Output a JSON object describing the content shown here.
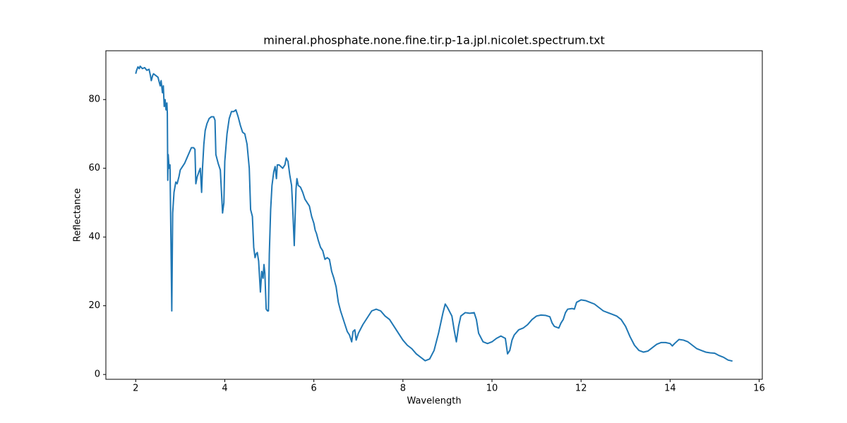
{
  "chart_data": {
    "type": "line",
    "title": "mineral.phosphate.none.fine.tir.p-1a.jpl.nicolet.spectrum.txt",
    "x_label": "Wavelength",
    "y_label": "Reflectance",
    "color": "#1f77b4",
    "xlim": [
      1.33,
      16.07
    ],
    "ylim": [
      -1.4,
      94.2
    ],
    "xticks": [
      2,
      4,
      6,
      8,
      10,
      12,
      14,
      16
    ],
    "yticks": [
      0,
      20,
      40,
      60,
      80
    ],
    "x": [
      2.0,
      2.02,
      2.05,
      2.08,
      2.1,
      2.15,
      2.2,
      2.25,
      2.3,
      2.33,
      2.35,
      2.38,
      2.4,
      2.45,
      2.5,
      2.53,
      2.55,
      2.57,
      2.6,
      2.62,
      2.64,
      2.66,
      2.68,
      2.7,
      2.71,
      2.72,
      2.73,
      2.75,
      2.77,
      2.79,
      2.81,
      2.83,
      2.86,
      2.9,
      2.93,
      2.97,
      3.0,
      3.05,
      3.1,
      3.15,
      3.2,
      3.25,
      3.3,
      3.33,
      3.35,
      3.38,
      3.42,
      3.45,
      3.48,
      3.5,
      3.53,
      3.56,
      3.6,
      3.65,
      3.7,
      3.75,
      3.78,
      3.8,
      3.85,
      3.9,
      3.95,
      3.98,
      4.0,
      4.05,
      4.1,
      4.15,
      4.2,
      4.25,
      4.3,
      4.35,
      4.4,
      4.45,
      4.5,
      4.55,
      4.58,
      4.62,
      4.65,
      4.68,
      4.7,
      4.73,
      4.76,
      4.8,
      4.83,
      4.86,
      4.88,
      4.9,
      4.93,
      4.96,
      4.98,
      5.0,
      5.03,
      5.06,
      5.1,
      5.13,
      5.16,
      5.18,
      5.22,
      5.26,
      5.3,
      5.35,
      5.38,
      5.42,
      5.46,
      5.5,
      5.53,
      5.56,
      5.58,
      5.6,
      5.62,
      5.65,
      5.7,
      5.75,
      5.8,
      5.85,
      5.9,
      5.95,
      6.0,
      6.03,
      6.06,
      6.1,
      6.15,
      6.2,
      6.25,
      6.3,
      6.35,
      6.4,
      6.45,
      6.5,
      6.55,
      6.6,
      6.65,
      6.7,
      6.75,
      6.8,
      6.85,
      6.88,
      6.92,
      6.95,
      7.0,
      7.1,
      7.2,
      7.3,
      7.4,
      7.5,
      7.6,
      7.7,
      7.8,
      7.9,
      8.0,
      8.1,
      8.2,
      8.3,
      8.4,
      8.5,
      8.6,
      8.7,
      8.8,
      8.9,
      8.95,
      9.0,
      9.1,
      9.15,
      9.2,
      9.25,
      9.3,
      9.4,
      9.5,
      9.6,
      9.65,
      9.7,
      9.8,
      9.9,
      10.0,
      10.1,
      10.2,
      10.3,
      10.35,
      10.4,
      10.45,
      10.5,
      10.6,
      10.7,
      10.8,
      10.9,
      11.0,
      11.1,
      11.2,
      11.3,
      11.35,
      11.4,
      11.5,
      11.55,
      11.6,
      11.65,
      11.7,
      11.8,
      11.85,
      11.9,
      12.0,
      12.1,
      12.2,
      12.3,
      12.4,
      12.5,
      12.6,
      12.7,
      12.8,
      12.9,
      13.0,
      13.1,
      13.2,
      13.3,
      13.4,
      13.5,
      13.6,
      13.7,
      13.8,
      13.9,
      14.0,
      14.05,
      14.1,
      14.2,
      14.3,
      14.4,
      14.5,
      14.6,
      14.7,
      14.8,
      14.9,
      15.0,
      15.1,
      15.2,
      15.3,
      15.4
    ],
    "values": [
      87.5,
      88.5,
      89.5,
      89,
      89.7,
      89,
      89.3,
      88.5,
      88.8,
      87,
      85.5,
      87,
      87.5,
      87,
      86.5,
      85,
      84,
      85.5,
      82,
      84,
      78,
      80,
      77,
      79,
      76,
      56.5,
      64,
      60,
      61,
      40,
      18.5,
      47,
      53,
      56,
      55.5,
      57.5,
      59.5,
      60.5,
      61.5,
      63,
      64.5,
      66,
      66,
      65.5,
      55.5,
      57.5,
      59,
      60,
      53,
      60,
      67,
      71,
      73,
      74.5,
      75,
      75,
      74,
      64,
      61.5,
      59.5,
      47,
      50,
      62,
      70,
      74.5,
      76.5,
      76.5,
      77,
      75,
      72.5,
      70.5,
      70,
      67,
      60,
      48,
      46,
      37,
      34,
      35,
      35.5,
      33,
      24,
      30,
      28,
      32,
      29.5,
      19,
      18.5,
      18.5,
      35,
      48,
      55,
      59,
      60.5,
      57,
      61,
      61,
      60.5,
      60,
      61,
      63,
      62,
      58,
      55,
      47,
      37.5,
      46,
      54,
      57,
      55,
      54.5,
      53,
      51,
      50,
      49,
      46,
      44,
      42,
      41,
      39,
      37,
      36,
      33.5,
      34,
      33.5,
      30,
      28,
      25.5,
      21,
      18.5,
      16.5,
      14.5,
      12.5,
      11.5,
      9.5,
      12.5,
      13,
      10,
      12,
      14.5,
      16.5,
      18.5,
      19,
      18.5,
      17,
      16,
      14,
      12,
      10,
      8.5,
      7.5,
      6,
      5,
      4,
      4.5,
      7,
      12,
      18,
      20.5,
      19.5,
      17,
      13,
      9.5,
      14,
      17,
      18,
      17.8,
      18,
      16,
      12,
      9.5,
      9,
      9.5,
      10.5,
      11.2,
      10.5,
      6,
      7,
      10,
      11.5,
      13,
      13.5,
      14.5,
      16,
      17,
      17.3,
      17.2,
      16.8,
      15,
      14,
      13.5,
      15,
      16,
      18,
      19,
      19.2,
      19,
      21,
      21.7,
      21.5,
      21,
      20.5,
      19.5,
      18.5,
      18,
      17.5,
      17,
      16,
      14,
      11,
      8.5,
      7,
      6.5,
      6.8,
      7.8,
      8.8,
      9.3,
      9.3,
      9,
      8.3,
      9,
      10.2,
      10,
      9.5,
      8.5,
      7.5,
      7,
      6.5,
      6.3,
      6.2,
      5.5,
      5,
      4.2,
      3.9
    ]
  }
}
